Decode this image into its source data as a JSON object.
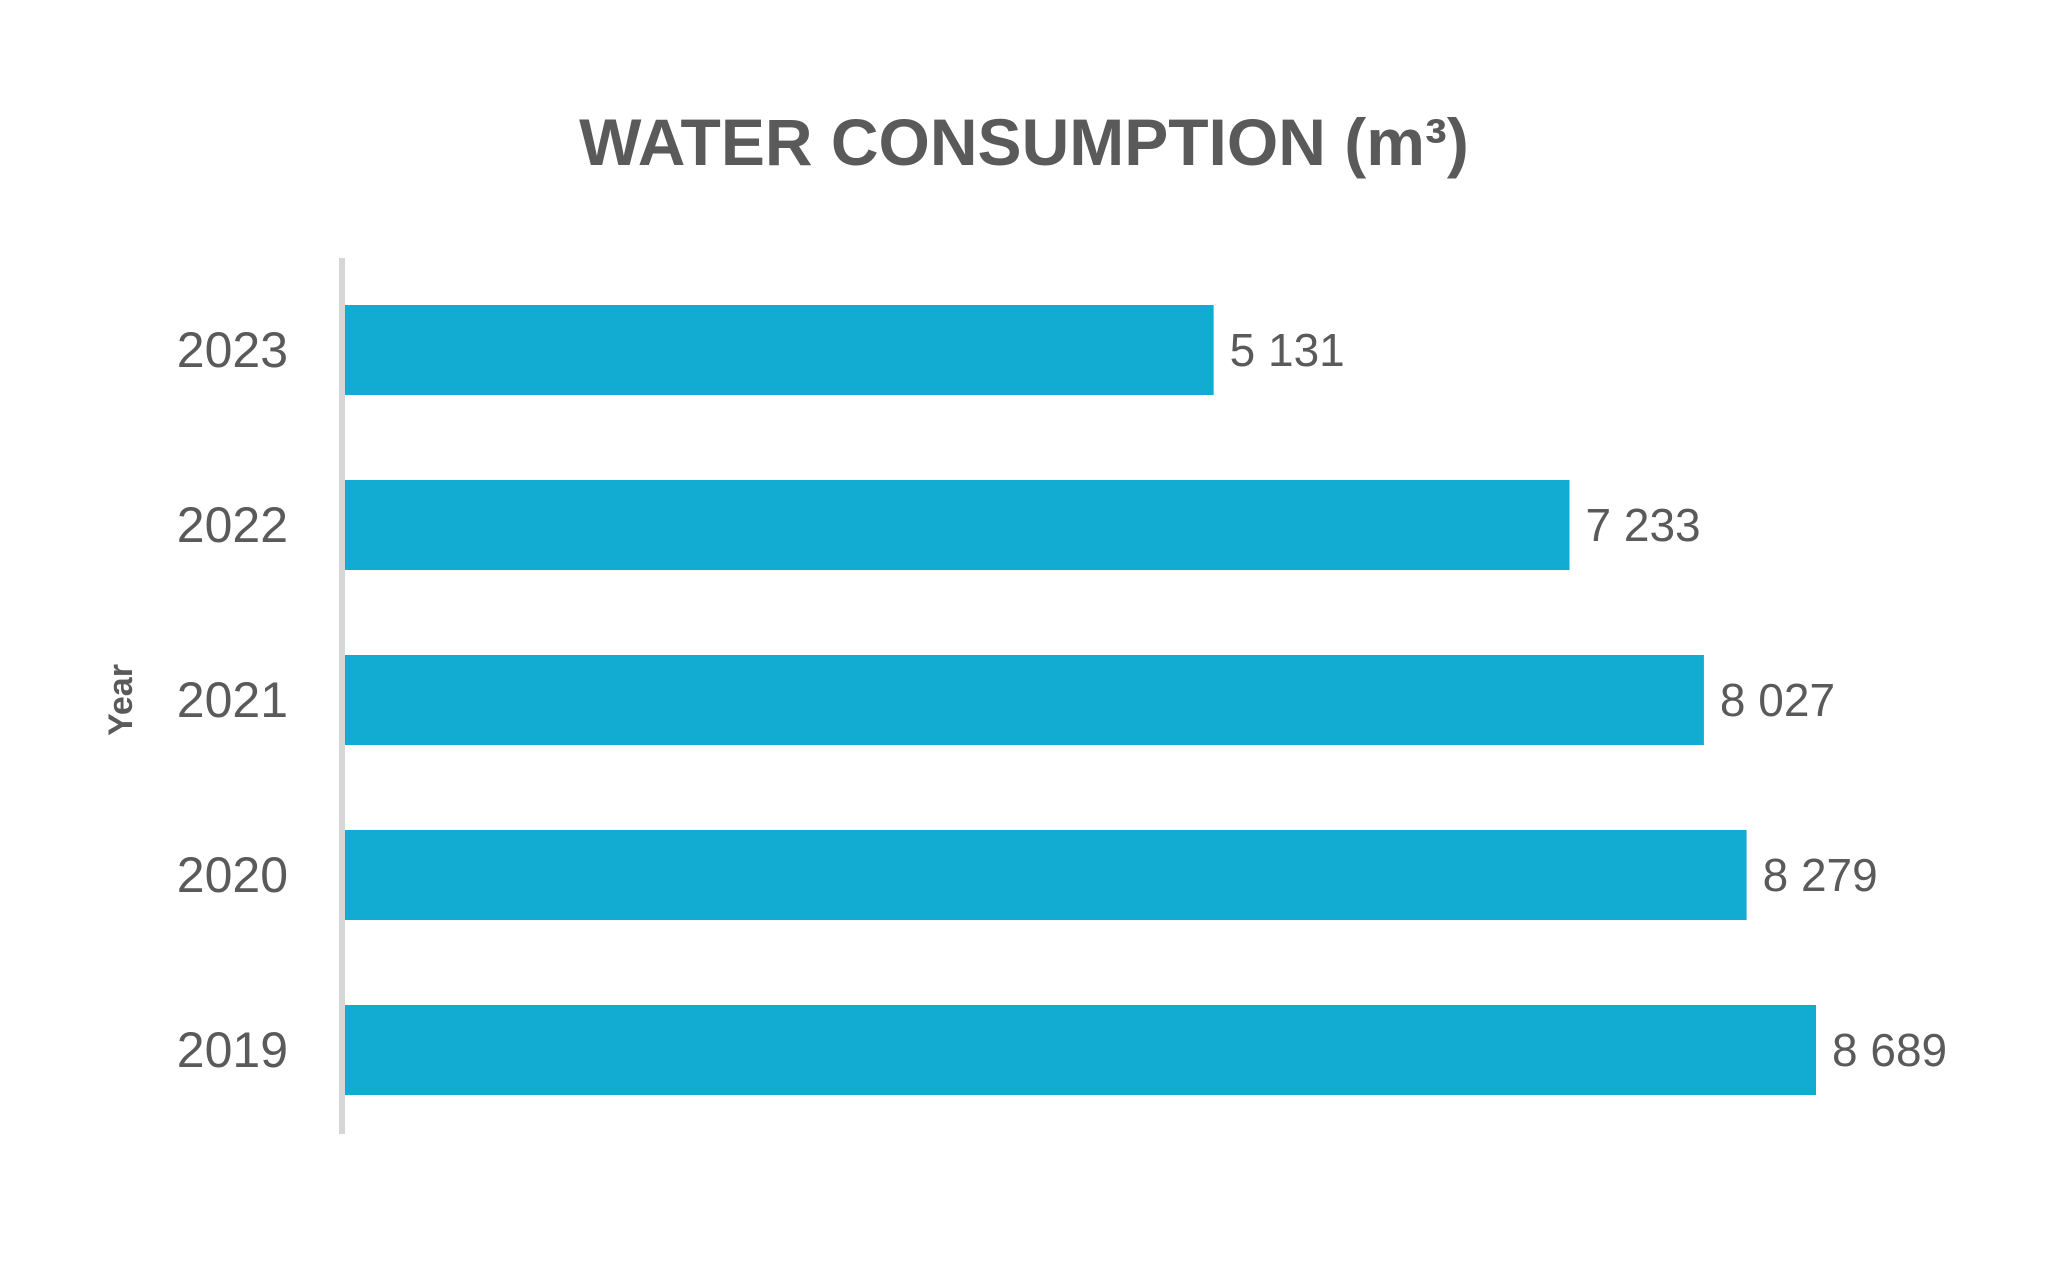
{
  "chart_data": {
    "type": "bar",
    "orientation": "horizontal",
    "title": "WATER CONSUMPTION (m³)",
    "ylabel": "Year",
    "xlabel": "",
    "categories": [
      "2023",
      "2022",
      "2021",
      "2020",
      "2019"
    ],
    "values": [
      5131,
      7233,
      8027,
      8279,
      8689
    ],
    "value_labels": [
      "5 131",
      "7 233",
      "8 027",
      "8 279",
      "8 689"
    ],
    "xlim": [
      0,
      8689
    ],
    "grid": false,
    "legend": "none",
    "colors": {
      "bar": "#12acd3",
      "text": "#5a5a5a",
      "axis": "#d6d6d6"
    }
  }
}
